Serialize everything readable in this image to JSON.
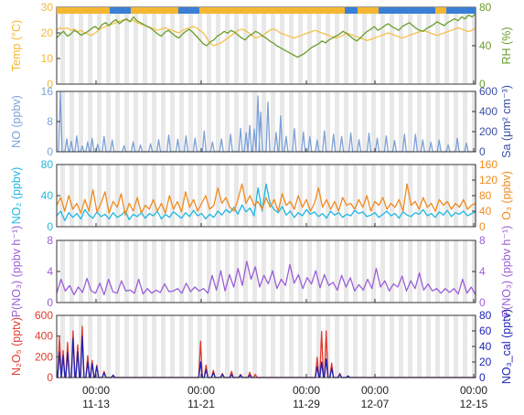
{
  "chart_data": [
    {
      "type": "line",
      "ylabel_left": "Temp (°C)",
      "ylabel_right": "RH (%)",
      "ylim_left": [
        0,
        30
      ],
      "ylim_right": [
        0,
        80
      ],
      "yticks_left": [
        "0",
        "10",
        "20",
        "30"
      ],
      "yticks_right": [
        "0",
        "40",
        "80"
      ],
      "status_bar_colors": [
        "#f5b731",
        "#3a7fd5"
      ],
      "series": [
        {
          "axis": "left",
          "color": "#f5c04a",
          "values": [
            21,
            22,
            21.5,
            22,
            21,
            21.5,
            20.5,
            21,
            20,
            19.5,
            19,
            20,
            21,
            22,
            22.5,
            23,
            23.5,
            24,
            24.5,
            25,
            25,
            24.5,
            25,
            24,
            23.5,
            23,
            22.5,
            22,
            21.5,
            21,
            21.5,
            22,
            21.5,
            21,
            20.5,
            20,
            21,
            21.5,
            22,
            22.5,
            22,
            21,
            20,
            18,
            16,
            15,
            15.5,
            16,
            17,
            18,
            19,
            20,
            21,
            21.5,
            21,
            20,
            19,
            18,
            18.5,
            19,
            20,
            21,
            21.5,
            21,
            20,
            19.5,
            19,
            18.5,
            18,
            18.5,
            19,
            19.5,
            20,
            20.5,
            21,
            20.5,
            20,
            19.5,
            19,
            18.5,
            18,
            18.5,
            19,
            20,
            19.5,
            19,
            18.5,
            18,
            17.5,
            17,
            17.5,
            18,
            18.5,
            19,
            19.5,
            20,
            19.5,
            19,
            18.5,
            18,
            18.5,
            19,
            19.5,
            20,
            20.5,
            21,
            20.5,
            20,
            19.5,
            19,
            19.5,
            20,
            20.5,
            21,
            21.5,
            22,
            21.5,
            21,
            20.5,
            21,
            22
          ]
        },
        {
          "axis": "right",
          "color": "#6a9e2c",
          "values": [
            48,
            52,
            55,
            50,
            52,
            56,
            54,
            51,
            53,
            55,
            58,
            60,
            57,
            62,
            64,
            61,
            65,
            67,
            63,
            66,
            68,
            65,
            70,
            66,
            64,
            62,
            60,
            58,
            55,
            52,
            50,
            54,
            56,
            53,
            50,
            48,
            52,
            55,
            57,
            54,
            50,
            46,
            42,
            40,
            44,
            46,
            50,
            52,
            55,
            53,
            56,
            54,
            51,
            48,
            46,
            50,
            52,
            55,
            53,
            50,
            48,
            45,
            43,
            40,
            38,
            36,
            34,
            32,
            30,
            28,
            30,
            32,
            35,
            38,
            40,
            42,
            45,
            43,
            46,
            48,
            50,
            52,
            55,
            53,
            50,
            47,
            45,
            48,
            52,
            55,
            57,
            60,
            56,
            58,
            61,
            63,
            60,
            58,
            56,
            60,
            62,
            64,
            61,
            58,
            56,
            55,
            58,
            60,
            62,
            65,
            63,
            61,
            64,
            66,
            68,
            66,
            70,
            68,
            72,
            70,
            73
          ]
        }
      ]
    },
    {
      "type": "line",
      "ylabel_left": "NO (ppbv)",
      "ylabel_right": "Sa (μm² cm⁻³)",
      "ylim_left": [
        0,
        16
      ],
      "ylim_right": [
        0,
        600
      ],
      "yticks_left": [
        "0",
        "8",
        "16"
      ],
      "yticks_right": [
        "0",
        "200",
        "400",
        "600"
      ],
      "series": [
        {
          "axis": "left",
          "color": "#7da1d8",
          "peaks": [
            [
              0.4,
              15.8
            ],
            [
              1.1,
              3.4
            ],
            [
              1.6,
              2.8
            ],
            [
              2.2,
              4.2
            ],
            [
              2.8,
              1.5
            ],
            [
              3.4,
              2.6
            ],
            [
              3.9,
              3.6
            ],
            [
              4.5,
              2.0
            ],
            [
              5.2,
              4.1
            ],
            [
              6.1,
              3.1
            ],
            [
              7.4,
              1.6
            ],
            [
              8.4,
              2.6
            ],
            [
              9.2,
              1.8
            ],
            [
              10.3,
              2.1
            ],
            [
              11.2,
              3.2
            ],
            [
              12.3,
              4.4
            ],
            [
              13.3,
              3.3
            ],
            [
              14.2,
              4.2
            ],
            [
              15.2,
              3.6
            ],
            [
              16.2,
              5.5
            ],
            [
              17.1,
              2.6
            ],
            [
              18.1,
              3.4
            ],
            [
              19.1,
              4.6
            ],
            [
              20.2,
              6.2
            ],
            [
              20.8,
              5.1
            ],
            [
              21.2,
              7.0
            ],
            [
              21.7,
              6.0
            ],
            [
              22.1,
              14.8
            ],
            [
              22.4,
              10.5
            ],
            [
              23.2,
              13.2
            ],
            [
              24.1,
              5.1
            ],
            [
              24.6,
              9.5
            ],
            [
              25.2,
              4.1
            ],
            [
              26.1,
              6.1
            ],
            [
              27.1,
              5.2
            ],
            [
              27.8,
              4.0
            ],
            [
              28.6,
              3.1
            ],
            [
              29.4,
              5.5
            ],
            [
              30.4,
              4.6
            ],
            [
              31.3,
              4.1
            ],
            [
              32.3,
              5.0
            ],
            [
              33.2,
              3.2
            ],
            [
              34.3,
              4.9
            ],
            [
              35.2,
              3.6
            ],
            [
              36.2,
              4.2
            ],
            [
              37.1,
              3.0
            ],
            [
              38.2,
              4.6
            ],
            [
              39.4,
              4.6
            ],
            [
              40.2,
              3.1
            ],
            [
              41.1,
              2.5
            ],
            [
              42.0,
              3.1
            ],
            [
              43.0,
              1.8
            ],
            [
              44.0,
              3.6
            ],
            [
              45.0,
              2.3
            ]
          ]
        }
      ]
    },
    {
      "type": "line",
      "ylabel_left": "NO₂ (ppbv)",
      "ylabel_right": "O₃ (ppbv)",
      "ylim_left": [
        0,
        80
      ],
      "ylim_right": [
        0,
        160
      ],
      "yticks_left": [
        "0",
        "40",
        "80"
      ],
      "yticks_right": [
        "0",
        "40",
        "80",
        "120",
        "160"
      ],
      "series": [
        {
          "axis": "left",
          "color": "#1fb7e0",
          "values": [
            14,
            20,
            8,
            18,
            12,
            17,
            10,
            22,
            15,
            11,
            19,
            13,
            16,
            10,
            18,
            12,
            15,
            20,
            9,
            16,
            13,
            18,
            11,
            17,
            14,
            20,
            10,
            16,
            12,
            19,
            15,
            11,
            18,
            13,
            21,
            14,
            17,
            10,
            16,
            12,
            20,
            15,
            22,
            18,
            25,
            16,
            28,
            19,
            24,
            14,
            50,
            20,
            55,
            30,
            22,
            18,
            26,
            15,
            20,
            12,
            18,
            14,
            22,
            16,
            19,
            13,
            17,
            11,
            20,
            15,
            18,
            12,
            16,
            14,
            21,
            17,
            19,
            13,
            15,
            18,
            12,
            16,
            20,
            14,
            17,
            11,
            19,
            15,
            13,
            18,
            16,
            22,
            14,
            17,
            12,
            19,
            15,
            21,
            13,
            18,
            16,
            20,
            14,
            17,
            19
          ]
        },
        {
          "axis": "right",
          "color": "#f08a1c",
          "values": [
            55,
            75,
            40,
            80,
            45,
            60,
            35,
            70,
            40,
            95,
            38,
            60,
            90,
            35,
            65,
            50,
            85,
            30,
            60,
            40,
            75,
            35,
            55,
            45,
            70,
            40,
            60,
            35,
            80,
            45,
            65,
            38,
            90,
            50,
            70,
            40,
            60,
            80,
            45,
            55,
            100,
            60,
            75,
            50,
            40,
            70,
            110,
            60,
            80,
            55,
            65,
            45,
            75,
            50,
            70,
            40,
            85,
            55,
            65,
            45,
            80,
            50,
            70,
            40,
            60,
            100,
            50,
            70,
            45,
            65,
            40,
            75,
            55,
            60,
            45,
            70,
            50,
            80,
            40,
            65,
            55,
            75,
            45,
            60,
            50,
            70,
            40,
            110,
            55,
            65,
            45,
            75,
            50,
            60,
            40,
            70,
            55,
            65,
            45,
            60,
            50,
            70,
            45,
            55,
            60
          ]
        }
      ]
    },
    {
      "type": "line",
      "ylabel_left": "P(NO₃) (ppbv h⁻¹)",
      "ylabel_right": "P(NO₃) (ppbv h⁻¹)",
      "ylim_left": [
        0,
        8
      ],
      "ylim_right": [
        0,
        8
      ],
      "yticks_left": [
        "0",
        "4",
        "8"
      ],
      "yticks_right": [
        "0",
        "4",
        "8"
      ],
      "series": [
        {
          "axis": "left",
          "color": "#9b5fd6",
          "values": [
            1.2,
            3.0,
            1.5,
            2.2,
            1.0,
            2.0,
            1.3,
            3.1,
            1.5,
            1.2,
            2.5,
            1.0,
            3.0,
            1.4,
            1.2,
            2.8,
            1.5,
            1.6,
            1.2,
            3.0,
            1.1,
            1.8,
            1.2,
            1.6,
            1.3,
            2.4,
            1.4,
            1.5,
            1.8,
            1.2,
            2.5,
            1.4,
            2.0,
            1.5,
            1.8,
            1.2,
            3.5,
            1.6,
            4.1,
            1.5,
            3.6,
            2.0,
            4.4,
            2.2,
            5.3,
            3.0,
            4.6,
            2.0,
            3.5,
            2.4,
            4.1,
            1.8,
            3.0,
            2.2,
            4.9,
            2.5,
            3.6,
            1.8,
            3.2,
            2.4,
            4.1,
            1.9,
            3.6,
            2.2,
            2.6,
            1.6,
            3.5,
            2.0,
            3.2,
            1.5,
            2.3,
            1.6,
            3.0,
            1.8,
            4.4,
            2.0,
            2.8,
            1.5,
            2.4,
            2.0,
            3.4,
            1.5,
            2.8,
            1.8,
            3.8,
            1.6,
            2.4,
            1.5,
            1.8,
            1.2,
            1.8,
            1.3,
            1.8,
            1.1,
            3.0,
            1.2,
            2.0,
            1.0
          ]
        }
      ]
    },
    {
      "type": "line",
      "ylabel_left": "N₂O₅ (pptv)",
      "ylabel_right": "NO₃_cal (pptv)",
      "ylim_left": [
        0,
        600
      ],
      "ylim_right": [
        0,
        80
      ],
      "yticks_left": [
        "0",
        "200",
        "400",
        "600"
      ],
      "yticks_right": [
        "0",
        "20",
        "40",
        "60",
        "80"
      ],
      "series": [
        {
          "axis": "left",
          "color": "#e03a2e",
          "peaks": [
            [
              0.3,
              395
            ],
            [
              0.7,
              260
            ],
            [
              1.2,
              340
            ],
            [
              1.8,
              450
            ],
            [
              2.3,
              315
            ],
            [
              2.8,
              495
            ],
            [
              3.4,
              210
            ],
            [
              3.9,
              165
            ],
            [
              4.4,
              120
            ],
            [
              5.2,
              60
            ],
            [
              6.2,
              20
            ],
            [
              15.8,
              350
            ],
            [
              16.4,
              120
            ],
            [
              17.2,
              70
            ],
            [
              18.2,
              40
            ],
            [
              19.2,
              60
            ],
            [
              20.2,
              30
            ],
            [
              21.2,
              50
            ],
            [
              21.8,
              30
            ],
            [
              28.6,
              195
            ],
            [
              29.1,
              445
            ],
            [
              29.6,
              450
            ],
            [
              30.2,
              140
            ],
            [
              31.1,
              40
            ],
            [
              32.0,
              15
            ]
          ]
        },
        {
          "axis": "right",
          "color": "#1f22b5",
          "peaks": [
            [
              0.3,
              33
            ],
            [
              0.7,
              28
            ],
            [
              1.2,
              32
            ],
            [
              1.8,
              50
            ],
            [
              2.3,
              33
            ],
            [
              2.8,
              53
            ],
            [
              3.4,
              20
            ],
            [
              3.9,
              18
            ],
            [
              4.4,
              14
            ],
            [
              5.2,
              6
            ],
            [
              6.2,
              3
            ],
            [
              15.8,
              20
            ],
            [
              16.4,
              10
            ],
            [
              17.2,
              6
            ],
            [
              18.2,
              4
            ],
            [
              19.2,
              4
            ],
            [
              20.2,
              3
            ],
            [
              21.2,
              3
            ],
            [
              28.6,
              14
            ],
            [
              29.1,
              20
            ],
            [
              29.6,
              24
            ],
            [
              30.2,
              12
            ],
            [
              31.1,
              4
            ],
            [
              32.0,
              2
            ]
          ]
        }
      ]
    }
  ],
  "x_ticks": [
    {
      "top": "00:00",
      "bottom": "11-13"
    },
    {
      "top": "00:00",
      "bottom": "11-21"
    },
    {
      "top": "00:00",
      "bottom": "11-29"
    },
    {
      "top": "00:00",
      "bottom": "12-07"
    },
    {
      "top": "00:00",
      "bottom": "12-15"
    }
  ]
}
